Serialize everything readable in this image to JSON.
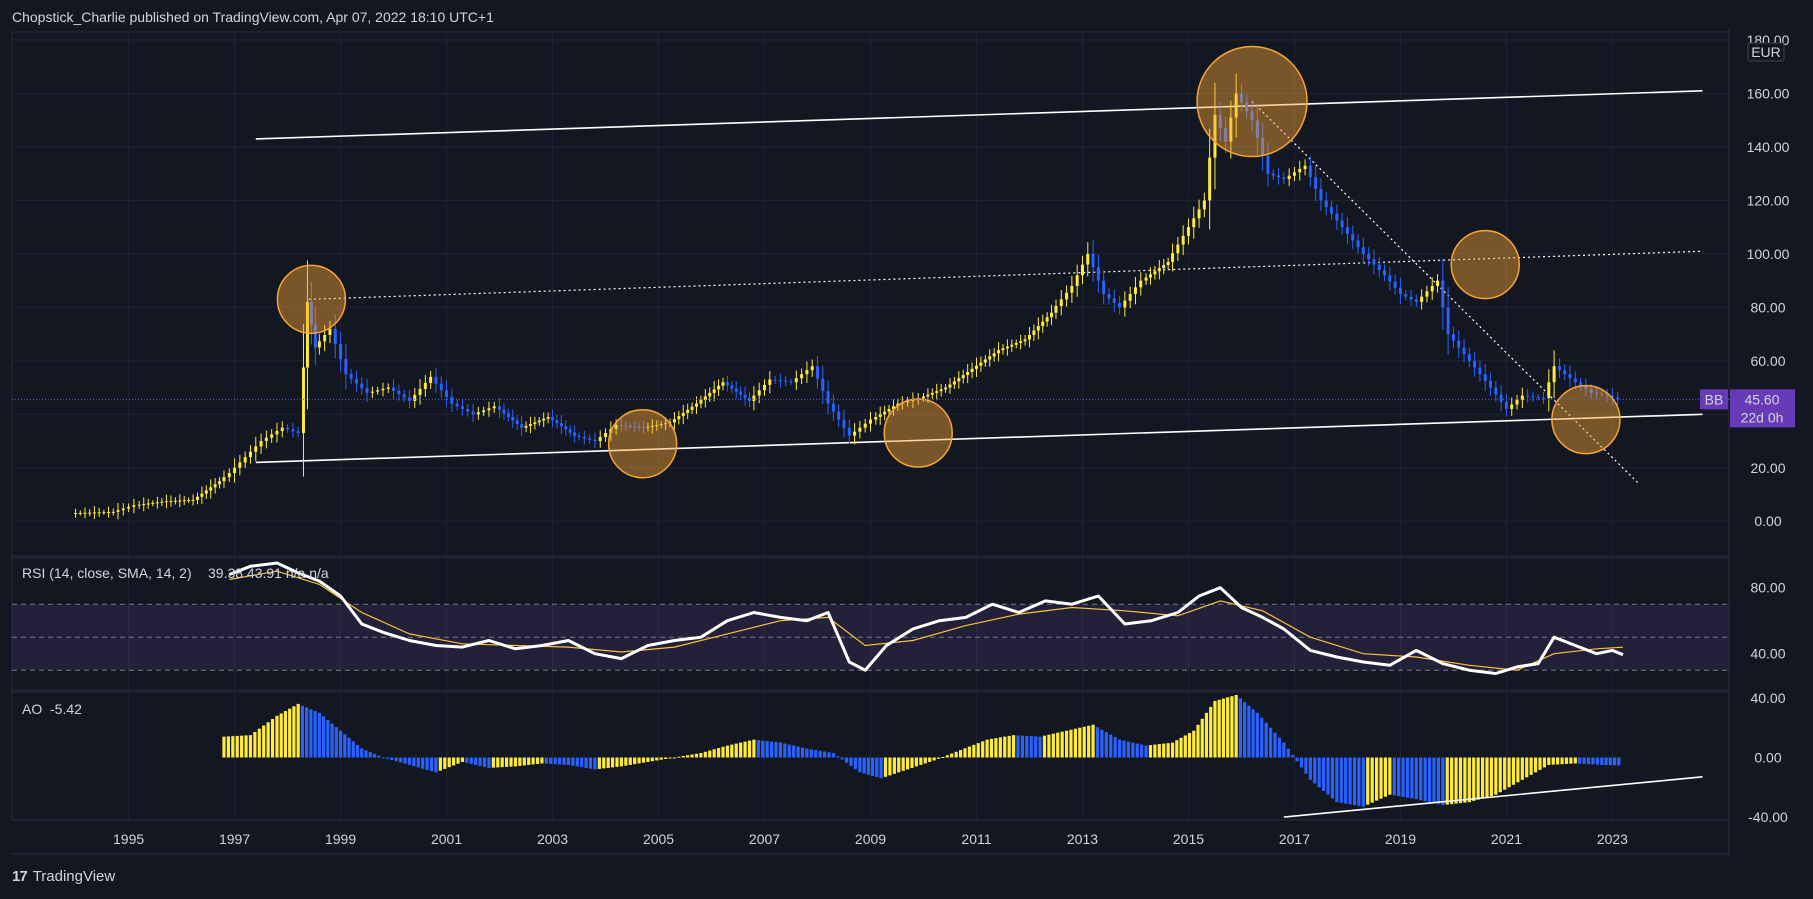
{
  "header": {
    "text": "Chopstick_Charlie published on TradingView.com, Apr 07, 2022 18:10 UTC+1"
  },
  "footer": {
    "logo": "17",
    "brand": "TradingView"
  },
  "colors": {
    "background": "#131722",
    "grid": "#1f2433",
    "up": "#ffeb3b",
    "down": "#2962ff",
    "text": "#d1d4dc",
    "circle": "#f7a532",
    "badge": "#673ab7"
  },
  "chart_data": {
    "type": "candlestick",
    "currency": "EUR",
    "price_axis": {
      "ticks": [
        "180.00",
        "160.00",
        "140.00",
        "120.00",
        "100.00",
        "80.00",
        "60.00",
        "40.00",
        "20.00",
        "0.00"
      ],
      "ylim": [
        -13,
        183
      ]
    },
    "time_axis": {
      "ticks": [
        "1995",
        "1997",
        "1999",
        "2001",
        "2003",
        "2005",
        "2007",
        "2009",
        "2011",
        "2013",
        "2015",
        "2017",
        "2019",
        "2021",
        "2023"
      ],
      "xlim": [
        1992.8,
        2025.2
      ]
    },
    "price_series": [
      [
        1994.0,
        3
      ],
      [
        1994.8,
        3.5
      ],
      [
        1995.2,
        6
      ],
      [
        1995.8,
        7.5
      ],
      [
        1996.3,
        8
      ],
      [
        1996.8,
        15
      ],
      [
        1997.0,
        18
      ],
      [
        1997.3,
        24
      ],
      [
        1997.6,
        30
      ],
      [
        1998.0,
        35
      ],
      [
        1998.3,
        33
      ],
      [
        1998.45,
        82
      ],
      [
        1998.6,
        65
      ],
      [
        1998.9,
        72
      ],
      [
        1999.2,
        55
      ],
      [
        1999.6,
        48
      ],
      [
        2000.0,
        50
      ],
      [
        2000.4,
        45
      ],
      [
        2000.8,
        54
      ],
      [
        2001.2,
        44
      ],
      [
        2001.6,
        40
      ],
      [
        2002.0,
        43
      ],
      [
        2002.5,
        35
      ],
      [
        2003.0,
        39
      ],
      [
        2003.5,
        32
      ],
      [
        2003.9,
        30
      ],
      [
        2004.3,
        36
      ],
      [
        2004.8,
        35
      ],
      [
        2005.3,
        37
      ],
      [
        2005.8,
        44
      ],
      [
        2006.3,
        52
      ],
      [
        2006.8,
        45
      ],
      [
        2007.2,
        53
      ],
      [
        2007.6,
        52
      ],
      [
        2008.0,
        58
      ],
      [
        2008.3,
        44
      ],
      [
        2008.7,
        32
      ],
      [
        2009.1,
        38
      ],
      [
        2009.6,
        44
      ],
      [
        2010.0,
        46
      ],
      [
        2010.5,
        50
      ],
      [
        2011.0,
        57
      ],
      [
        2011.5,
        64
      ],
      [
        2012.0,
        68
      ],
      [
        2012.5,
        78
      ],
      [
        2012.9,
        88
      ],
      [
        2013.2,
        100
      ],
      [
        2013.5,
        85
      ],
      [
        2013.8,
        80
      ],
      [
        2014.2,
        90
      ],
      [
        2014.7,
        97
      ],
      [
        2015.1,
        110
      ],
      [
        2015.4,
        120
      ],
      [
        2015.6,
        152
      ],
      [
        2015.8,
        142
      ],
      [
        2016.0,
        160
      ],
      [
        2016.3,
        150
      ],
      [
        2016.6,
        130
      ],
      [
        2016.9,
        128
      ],
      [
        2017.3,
        133
      ],
      [
        2017.6,
        120
      ],
      [
        2018.0,
        110
      ],
      [
        2018.4,
        100
      ],
      [
        2018.8,
        92
      ],
      [
        2019.1,
        85
      ],
      [
        2019.4,
        82
      ],
      [
        2019.8,
        90
      ],
      [
        2020.0,
        70
      ],
      [
        2020.4,
        60
      ],
      [
        2020.8,
        50
      ],
      [
        2021.1,
        42
      ],
      [
        2021.4,
        47
      ],
      [
        2021.8,
        46
      ],
      [
        2022.0,
        58
      ],
      [
        2022.4,
        52
      ],
      [
        2022.7,
        48
      ],
      [
        2023.0,
        47
      ],
      [
        2023.2,
        45.6
      ]
    ],
    "last_price": {
      "symbol": "BB",
      "value": "45.60",
      "countdown": "22d 0h"
    },
    "trendlines": [
      {
        "from": [
          1997.4,
          143
        ],
        "to": [
          2024.7,
          161
        ],
        "style": "solid"
      },
      {
        "from": [
          1997.4,
          22
        ],
        "to": [
          2024.7,
          40
        ],
        "style": "solid"
      },
      {
        "from": [
          1998.4,
          83
        ],
        "to": [
          2024.7,
          101
        ],
        "style": "dotted"
      },
      {
        "from": [
          2016.2,
          157
        ],
        "to": [
          2023.5,
          14
        ],
        "style": "dotted"
      }
    ],
    "highlights": [
      [
        1998.45,
        83
      ],
      [
        2004.7,
        29
      ],
      [
        2009.9,
        33
      ],
      [
        2016.2,
        157
      ],
      [
        2020.6,
        96
      ],
      [
        2022.5,
        38
      ]
    ],
    "rsi": {
      "label": "RSI (14, close, SMA, 14, 2)",
      "value_text": "39.38  43.91  n/a  n/a",
      "ticks": [
        "80.00",
        "40.00"
      ],
      "levels": [
        70,
        50,
        30
      ],
      "ylim": [
        18,
        98
      ],
      "series": [
        [
          1996.9,
          88
        ],
        [
          1997.3,
          93
        ],
        [
          1997.8,
          95
        ],
        [
          1998.2,
          89
        ],
        [
          1998.6,
          84
        ],
        [
          1999.0,
          75
        ],
        [
          1999.4,
          58
        ],
        [
          1999.8,
          53
        ],
        [
          2000.3,
          48
        ],
        [
          2000.8,
          45
        ],
        [
          2001.3,
          44
        ],
        [
          2001.8,
          48
        ],
        [
          2002.3,
          43
        ],
        [
          2002.8,
          45
        ],
        [
          2003.3,
          48
        ],
        [
          2003.8,
          40
        ],
        [
          2004.3,
          37
        ],
        [
          2004.8,
          45
        ],
        [
          2005.3,
          48
        ],
        [
          2005.8,
          50
        ],
        [
          2006.3,
          60
        ],
        [
          2006.8,
          65
        ],
        [
          2007.3,
          62
        ],
        [
          2007.8,
          60
        ],
        [
          2008.2,
          65
        ],
        [
          2008.6,
          35
        ],
        [
          2008.9,
          30
        ],
        [
          2009.3,
          45
        ],
        [
          2009.8,
          55
        ],
        [
          2010.3,
          60
        ],
        [
          2010.8,
          62
        ],
        [
          2011.3,
          70
        ],
        [
          2011.8,
          65
        ],
        [
          2012.3,
          72
        ],
        [
          2012.8,
          70
        ],
        [
          2013.3,
          75
        ],
        [
          2013.8,
          58
        ],
        [
          2014.3,
          60
        ],
        [
          2014.8,
          65
        ],
        [
          2015.2,
          75
        ],
        [
          2015.6,
          80
        ],
        [
          2016.0,
          68
        ],
        [
          2016.4,
          62
        ],
        [
          2016.8,
          55
        ],
        [
          2017.3,
          42
        ],
        [
          2017.8,
          38
        ],
        [
          2018.3,
          35
        ],
        [
          2018.8,
          33
        ],
        [
          2019.3,
          42
        ],
        [
          2019.8,
          34
        ],
        [
          2020.3,
          30
        ],
        [
          2020.8,
          28
        ],
        [
          2021.2,
          32
        ],
        [
          2021.6,
          34
        ],
        [
          2021.9,
          50
        ],
        [
          2022.3,
          45
        ],
        [
          2022.7,
          40
        ],
        [
          2023.0,
          42
        ],
        [
          2023.2,
          39.38
        ]
      ],
      "sma": [
        [
          1996.9,
          85
        ],
        [
          1997.8,
          90
        ],
        [
          1998.6,
          82
        ],
        [
          1999.4,
          65
        ],
        [
          2000.3,
          52
        ],
        [
          2001.3,
          46
        ],
        [
          2002.3,
          45
        ],
        [
          2003.3,
          44
        ],
        [
          2004.3,
          41
        ],
        [
          2005.3,
          44
        ],
        [
          2006.3,
          52
        ],
        [
          2007.3,
          60
        ],
        [
          2008.2,
          62
        ],
        [
          2008.9,
          45
        ],
        [
          2009.8,
          48
        ],
        [
          2010.8,
          57
        ],
        [
          2011.8,
          64
        ],
        [
          2012.8,
          68
        ],
        [
          2013.8,
          66
        ],
        [
          2014.8,
          63
        ],
        [
          2015.6,
          72
        ],
        [
          2016.4,
          66
        ],
        [
          2017.3,
          50
        ],
        [
          2018.3,
          40
        ],
        [
          2019.3,
          38
        ],
        [
          2020.3,
          33
        ],
        [
          2021.2,
          30
        ],
        [
          2021.9,
          40
        ],
        [
          2022.7,
          43
        ],
        [
          2023.2,
          43.91
        ]
      ]
    },
    "ao": {
      "label": "AO",
      "value_text": "-5.42",
      "ticks": [
        "40.00",
        "0.00",
        "-40.00"
      ],
      "ylim": [
        -42,
        44
      ],
      "bars": [
        [
          1996.8,
          14
        ],
        [
          1997.3,
          15
        ],
        [
          1997.8,
          28
        ],
        [
          1998.2,
          36
        ],
        [
          1998.6,
          30
        ],
        [
          1999.0,
          18
        ],
        [
          1999.4,
          6
        ],
        [
          1999.8,
          0
        ],
        [
          2000.3,
          -5
        ],
        [
          2000.8,
          -10
        ],
        [
          2001.3,
          -3
        ],
        [
          2001.8,
          -7
        ],
        [
          2002.3,
          -6
        ],
        [
          2002.8,
          -4
        ],
        [
          2003.3,
          -5
        ],
        [
          2003.8,
          -8
        ],
        [
          2004.3,
          -6
        ],
        [
          2004.8,
          -3
        ],
        [
          2005.3,
          0
        ],
        [
          2005.8,
          3
        ],
        [
          2006.3,
          8
        ],
        [
          2006.8,
          12
        ],
        [
          2007.3,
          10
        ],
        [
          2007.8,
          6
        ],
        [
          2008.3,
          3
        ],
        [
          2008.8,
          -10
        ],
        [
          2009.2,
          -14
        ],
        [
          2009.7,
          -8
        ],
        [
          2010.2,
          -2
        ],
        [
          2010.7,
          5
        ],
        [
          2011.2,
          12
        ],
        [
          2011.7,
          15
        ],
        [
          2012.2,
          14
        ],
        [
          2012.7,
          18
        ],
        [
          2013.2,
          22
        ],
        [
          2013.7,
          12
        ],
        [
          2014.2,
          8
        ],
        [
          2014.7,
          10
        ],
        [
          2015.1,
          18
        ],
        [
          2015.5,
          38
        ],
        [
          2015.9,
          42
        ],
        [
          2016.3,
          30
        ],
        [
          2016.8,
          10
        ],
        [
          2017.3,
          -15
        ],
        [
          2017.8,
          -30
        ],
        [
          2018.3,
          -33
        ],
        [
          2018.8,
          -25
        ],
        [
          2019.3,
          -28
        ],
        [
          2019.8,
          -32
        ],
        [
          2020.3,
          -30
        ],
        [
          2020.8,
          -25
        ],
        [
          2021.3,
          -15
        ],
        [
          2021.8,
          -5
        ],
        [
          2022.3,
          -4
        ],
        [
          2022.8,
          -5
        ],
        [
          2023.2,
          -5.42
        ]
      ],
      "trendline": {
        "from": [
          2016.8,
          -40
        ],
        "to": [
          2024.7,
          -13
        ]
      }
    }
  }
}
